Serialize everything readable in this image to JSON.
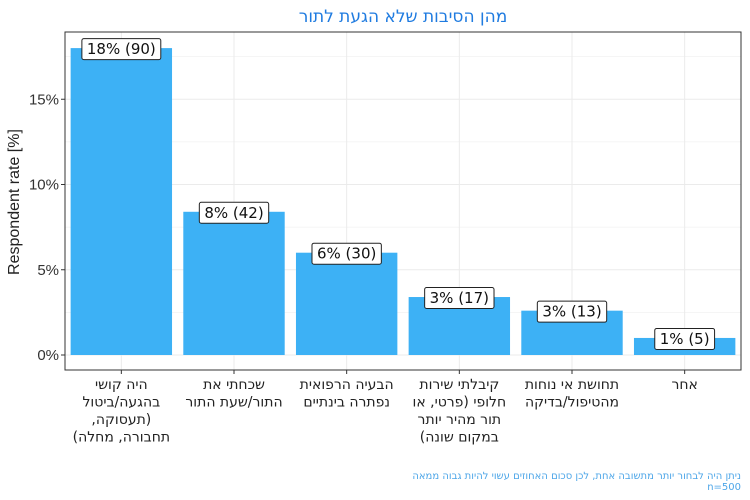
{
  "chart_data": {
    "type": "bar",
    "title": "מהן הסיבות שלא הגעת לתור",
    "xlabel": "",
    "ylabel": "Respondent rate [%]",
    "categories": [
      [
        "היה קושי",
        "בהגעה/ביטול",
        "(תעסוקה,",
        "תחבורה, מחלה)"
      ],
      [
        "שכחתי את",
        "התור/שעת התור"
      ],
      [
        "הבעיה הרפואית",
        "נפתרה בינתיים"
      ],
      [
        "קיבלתי שירות",
        "חלופי (פרטי, או",
        "תור מהיר יותר",
        "במקום שונה)"
      ],
      [
        "תחושת אי נוחות",
        "מהטיפול/בדיקה"
      ],
      [
        "אחר"
      ]
    ],
    "values": [
      18,
      8.4,
      6,
      3.4,
      2.6,
      1
    ],
    "data_labels": [
      "18% (90)",
      "8% (42)",
      "6% (30)",
      "3% (17)",
      "3% (13)",
      "1% (5)"
    ],
    "ylim": [
      0,
      19
    ],
    "yticks": [
      0,
      5,
      10,
      15
    ],
    "ytick_labels": [
      "0%",
      "5%",
      "10%",
      "15%"
    ],
    "grid": true,
    "bar_color": "#3DB1F5",
    "title_color": "#1F7BE0",
    "caption_color": "#4DA6E8",
    "caption_lines": [
      "ניתן היה לבחור יותר מתשובה אחת, לכן סכום האחוזים עשוי להיות גבוה ממאה",
      "n=500"
    ]
  }
}
